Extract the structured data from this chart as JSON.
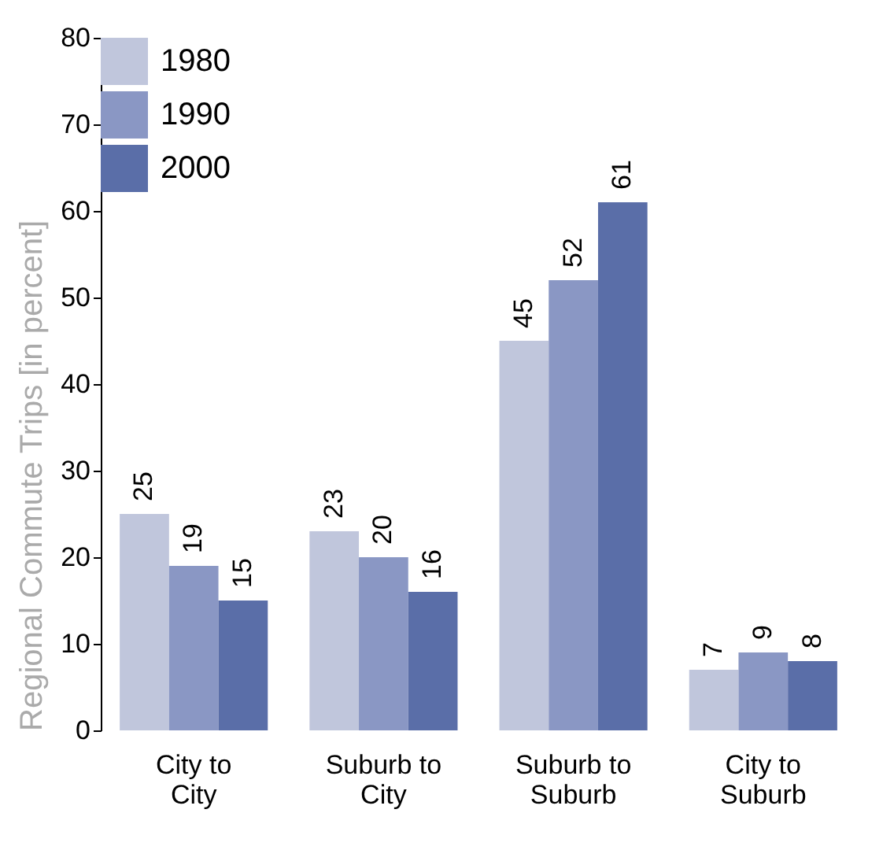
{
  "chart_data": {
    "type": "bar",
    "ylabel": "Regional Commute Trips [in percent]",
    "categories": [
      "City to City",
      "Suburb to City",
      "Suburb to Suburb",
      "City to Suburb"
    ],
    "series": [
      {
        "name": "1980",
        "color": "#c0c6dc",
        "values": [
          25,
          23,
          45,
          7
        ]
      },
      {
        "name": "1990",
        "color": "#8a97c4",
        "values": [
          19,
          20,
          52,
          9
        ]
      },
      {
        "name": "2000",
        "color": "#5a6ea8",
        "values": [
          15,
          16,
          61,
          8
        ]
      }
    ],
    "ylim": [
      0,
      80
    ],
    "yticks": [
      0,
      10,
      20,
      30,
      40,
      50,
      60,
      70,
      80
    ],
    "data_labels": true,
    "grid": false,
    "legend": "top left"
  }
}
